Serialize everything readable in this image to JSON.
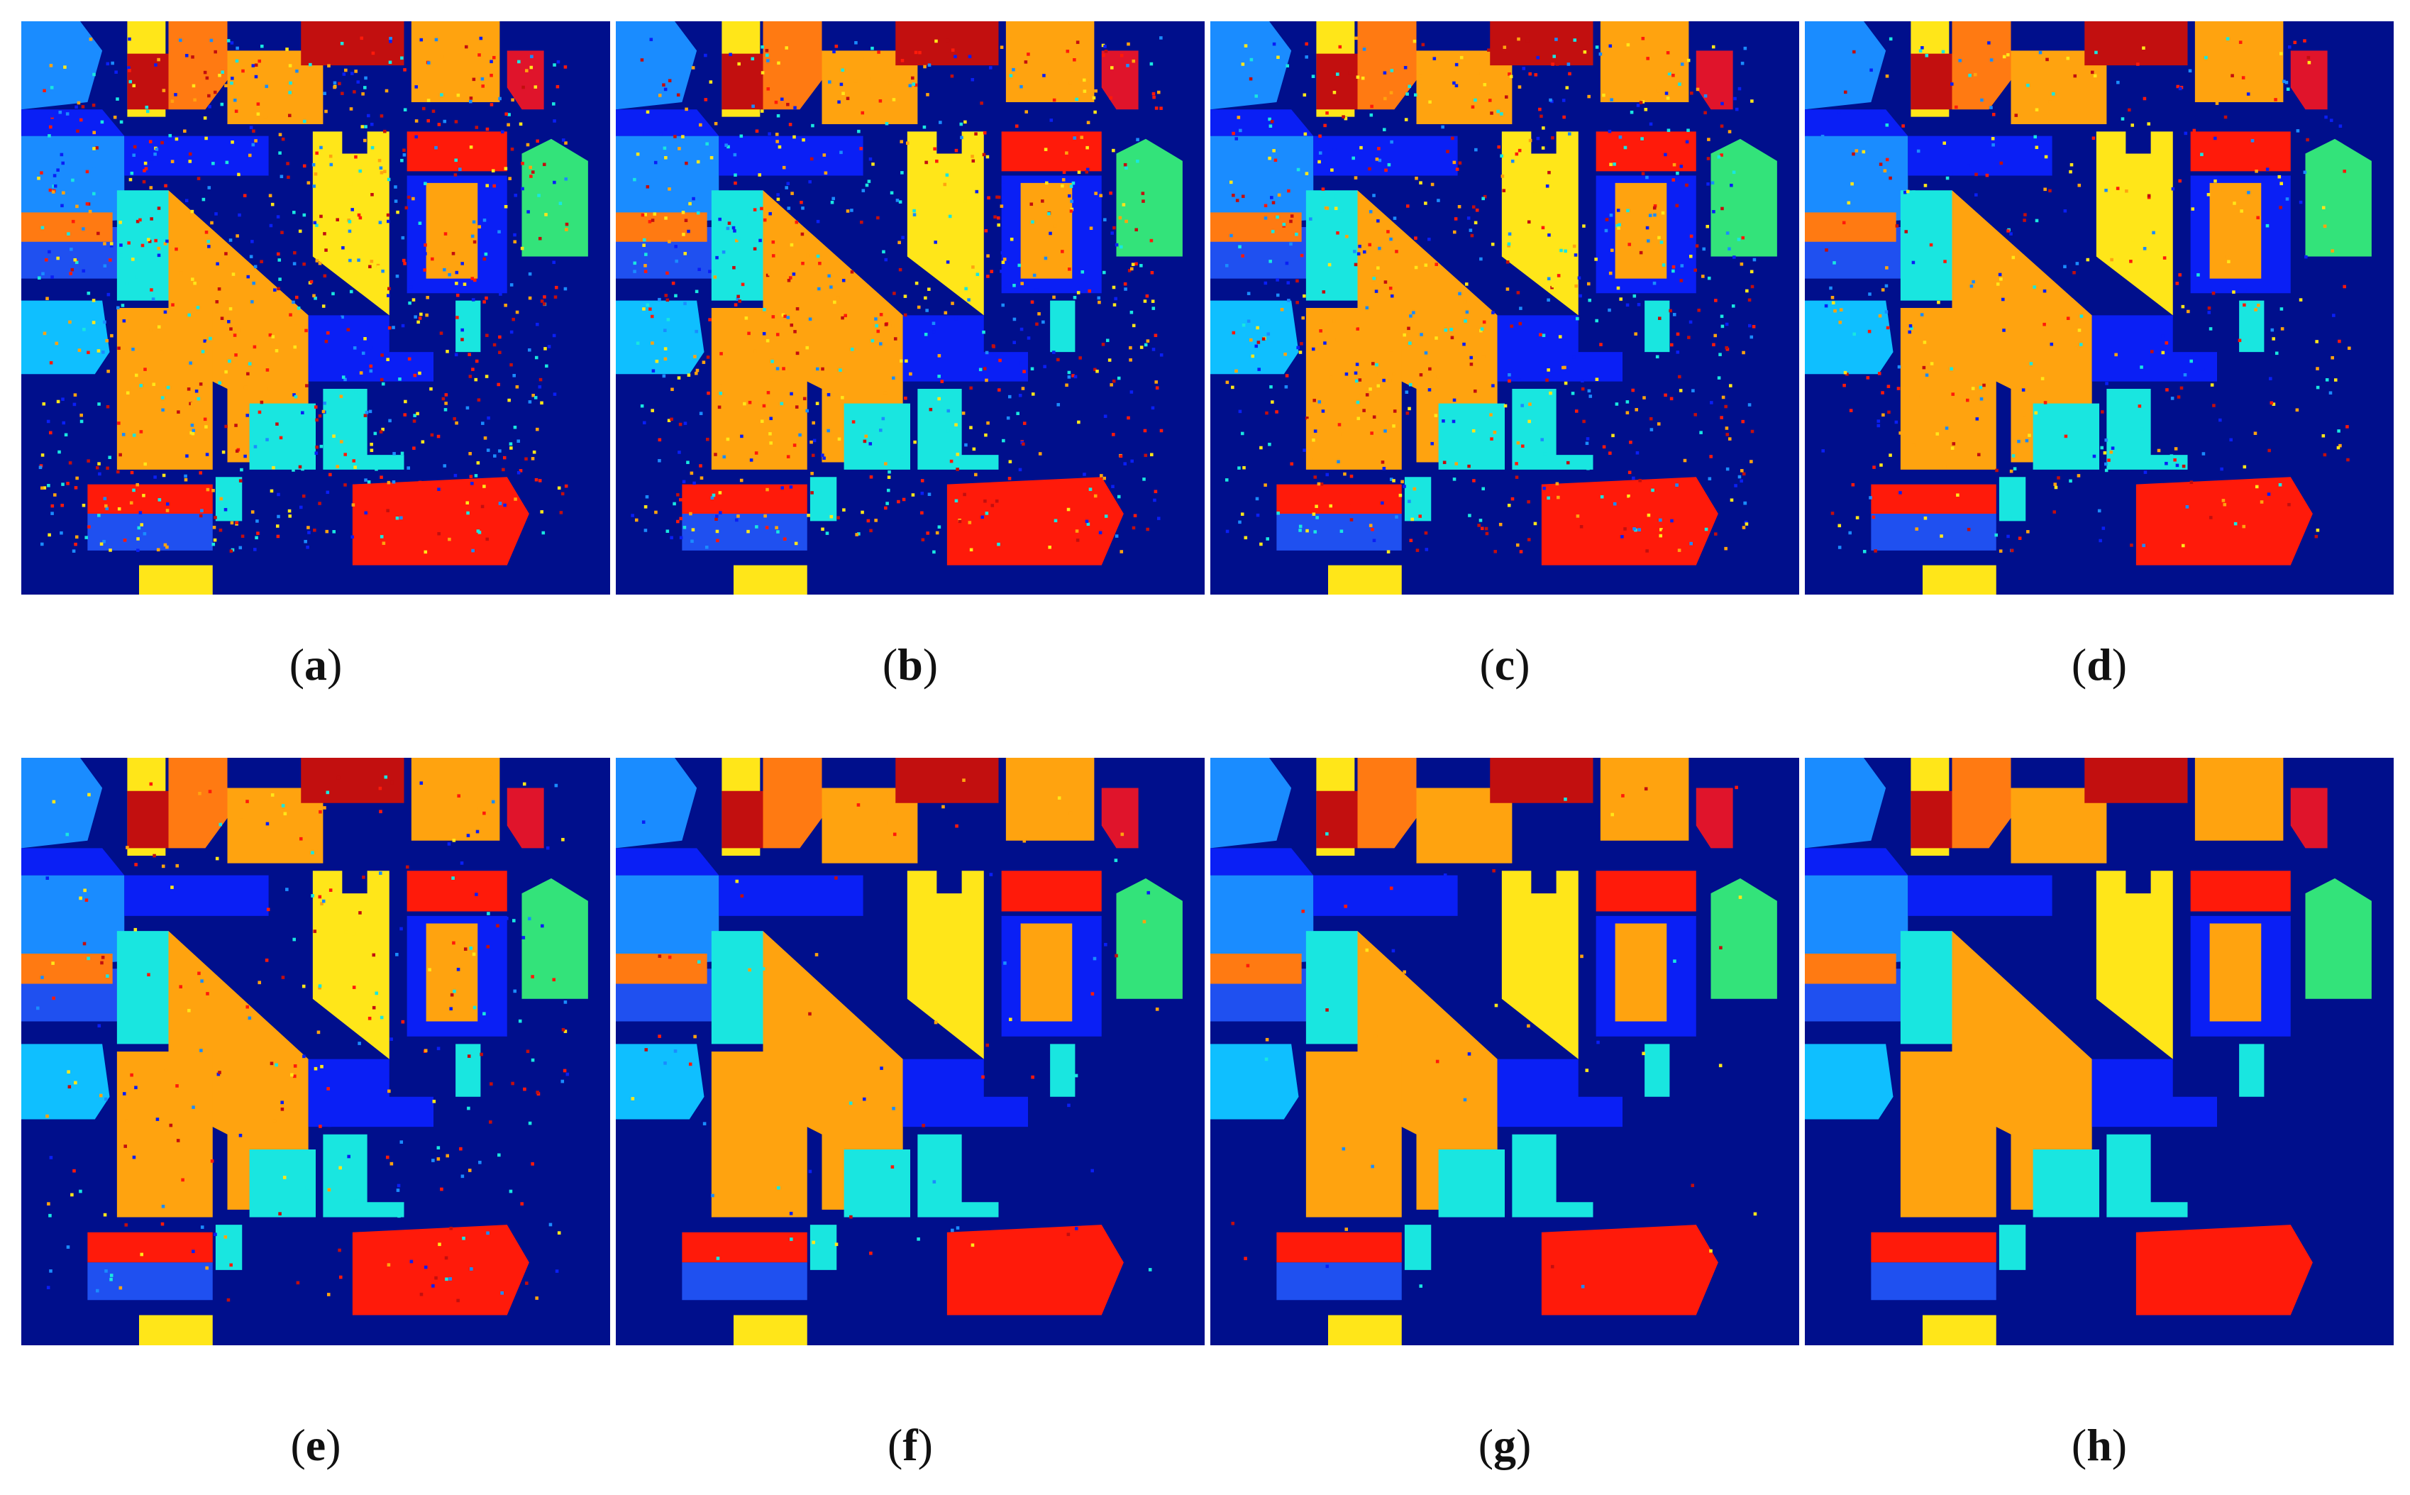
{
  "figure": {
    "panels": [
      {
        "id": "a",
        "caption": "a",
        "noise": 1.0
      },
      {
        "id": "b",
        "caption": "b",
        "noise": 0.85
      },
      {
        "id": "c",
        "caption": "c",
        "noise": 0.8
      },
      {
        "id": "d",
        "caption": "d",
        "noise": 0.45
      },
      {
        "id": "e",
        "caption": "e",
        "noise": 0.3
      },
      {
        "id": "f",
        "caption": "f",
        "noise": 0.08
      },
      {
        "id": "g",
        "caption": "g",
        "noise": 0.05
      },
      {
        "id": "h",
        "caption": "h",
        "noise": 0.0
      }
    ],
    "colors": {
      "background": "#000f8c",
      "red": "#ff1a0a",
      "orange": "#ffa30f",
      "dark_orange": "#ff7a12",
      "yellow": "#ffe619",
      "cyan": "#19e6e0",
      "light_blue": "#0fbfff",
      "sky_blue": "#1a8cff",
      "blue": "#0a1ff5",
      "royal_blue": "#1f50f0",
      "green": "#33e37a",
      "dark_red": "#c20f0f",
      "crimson": "#e0142b"
    }
  }
}
